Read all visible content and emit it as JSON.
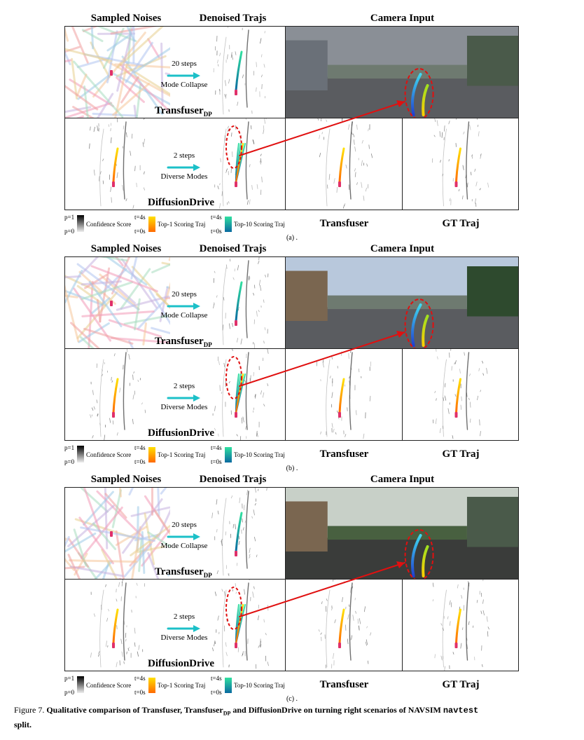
{
  "panels": [
    {
      "sub_label": "(a) .",
      "headers": {
        "noises": "Sampled Noises",
        "denoised": "Denoised Trajs",
        "camera": "Camera Input"
      },
      "top_steps": "20 steps",
      "top_mode": "Mode Collapse",
      "top_model": "Transfuser",
      "top_model_sub": "DP",
      "bottom_steps": "2 steps",
      "bottom_mode": "Diverse Modes",
      "bottom_model": "DiffusionDrive",
      "col3_label": "Transfuser",
      "col4_label": "GT Traj",
      "legend": {
        "p1": "p=1",
        "p0": "p=0",
        "conf": "Confidence Score",
        "t4a": "t=4s",
        "t0a": "t=0s",
        "top1": "Top-1 Scoring Traj",
        "t4b": "t=4s",
        "t0b": "t=0s",
        "top10": "Top-10 Scoring Traj"
      }
    },
    {
      "sub_label": "(b) .",
      "headers": {
        "noises": "Sampled Noises",
        "denoised": "Denoised Trajs",
        "camera": "Camera Input"
      },
      "top_steps": "20 steps",
      "top_mode": "Mode Collapse",
      "top_model": "Transfuser",
      "top_model_sub": "DP",
      "bottom_steps": "2 steps",
      "bottom_mode": "Diverse Modes",
      "bottom_model": "DiffusionDrive",
      "col3_label": "Transfuser",
      "col4_label": "GT Traj",
      "legend": {
        "p1": "p=1",
        "p0": "p=0",
        "conf": "Confidence Score",
        "t4a": "t=4s",
        "t0a": "t=0s",
        "top1": "Top-1 Scoring Traj",
        "t4b": "t=4s",
        "t0b": "t=0s",
        "top10": "Top-10 Scoring Traj"
      }
    },
    {
      "sub_label": "(c) .",
      "headers": {
        "noises": "Sampled Noises",
        "denoised": "Denoised Trajs",
        "camera": "Camera Input"
      },
      "top_steps": "20 steps",
      "top_mode": "Mode Collapse",
      "top_model": "Transfuser",
      "top_model_sub": "DP",
      "bottom_steps": "2 steps",
      "bottom_mode": "Diverse Modes",
      "bottom_model": "DiffusionDrive",
      "col3_label": "Transfuser",
      "col4_label": "GT Traj",
      "legend": {
        "p1": "p=1",
        "p0": "p=0",
        "conf": "Confidence Score",
        "t4a": "t=4s",
        "t0a": "t=0s",
        "top1": "Top-1 Scoring Traj",
        "t4b": "t=4s",
        "t0b": "t=0s",
        "top10": "Top-10 Scoring Traj"
      }
    }
  ],
  "caption": {
    "prefix": "Figure 7. ",
    "bold_a": "Qualitative comparison of Transfuser, Transfuser",
    "bold_sub": "DP",
    "bold_b": " and DiffusionDrive on turning right scenarios of NAVSIM ",
    "mono": "navtest",
    "bold_c": "split."
  },
  "colors": {
    "arrow": "#1cc0c8",
    "red": "#e01010",
    "ego": "#e0306a",
    "top1_start": "#ffe000",
    "top1_end": "#ff6a00",
    "top10_start": "#0a6aa0",
    "top10_end": "#30e0a0"
  }
}
